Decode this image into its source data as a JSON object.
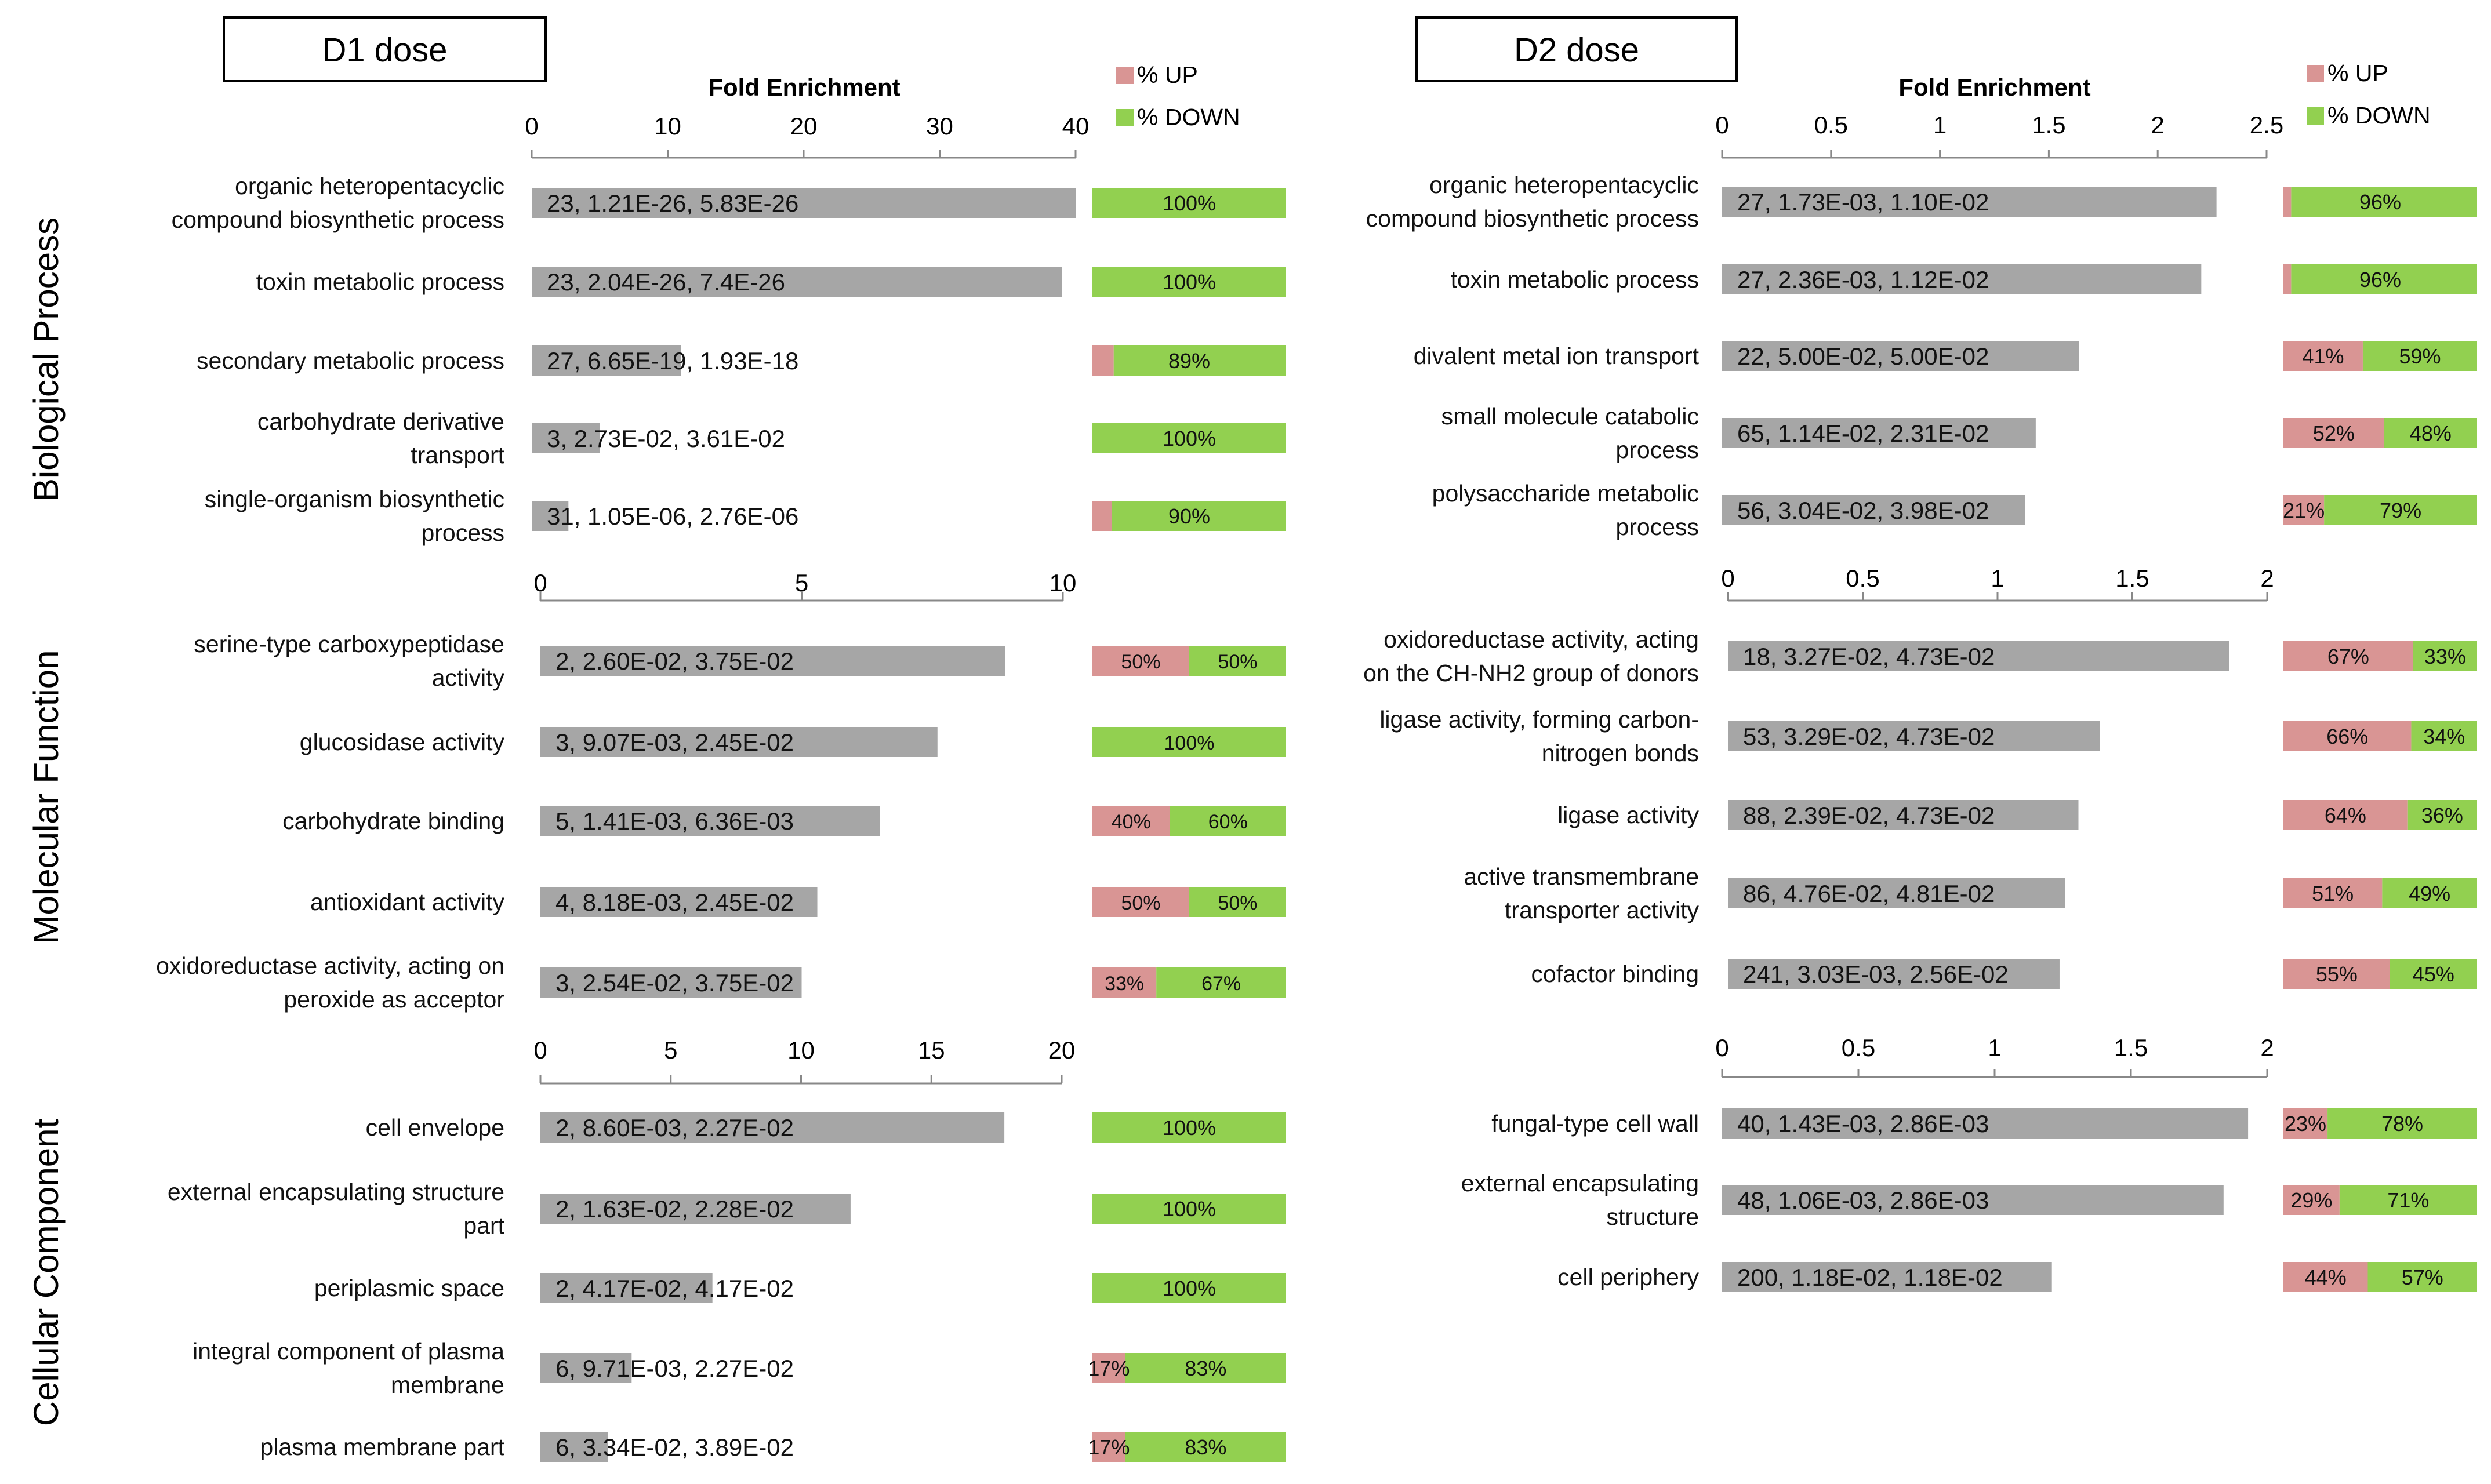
{
  "colors": {
    "bar": "#a6a6a6",
    "up": "#d99594",
    "down": "#92d050",
    "axis": "#888888"
  },
  "legend": {
    "up_label": "% UP",
    "down_label": "% DOWN"
  },
  "chart_data": [
    {
      "type": "bar",
      "orientation": "horizontal",
      "panel_title": "D1 dose",
      "section": "Biological Process",
      "xlabel": "Fold Enrichment",
      "xlim": [
        0,
        40
      ],
      "ticks": [
        "0",
        "10",
        "20",
        "30",
        "40"
      ],
      "legend": [
        "% UP",
        "% DOWN"
      ],
      "categories": [
        "organic heteropentacyclic compound biosynthetic process",
        "toxin metabolic process",
        "secondary metabolic process",
        "carbohydrate derivative transport",
        "single-organism biosynthetic process"
      ],
      "label_lines": [
        [
          "organic heteropentacyclic",
          "compound biosynthetic process"
        ],
        [
          "toxin metabolic process"
        ],
        [
          "secondary metabolic process"
        ],
        [
          "carbohydrate derivative",
          "transport"
        ],
        [
          "single-organism biosynthetic",
          "process"
        ]
      ],
      "values": [
        40,
        39,
        11,
        5,
        2.7
      ],
      "bar_labels": [
        "23, 1.21E-26, 5.83E-26",
        "23, 2.04E-26, 7.4E-26",
        "27, 6.65E-19, 1.93E-18",
        "3, 2.73E-02, 3.61E-02",
        "31, 1.05E-06, 2.76E-06"
      ],
      "pct_up": [
        0,
        0,
        11,
        0,
        10
      ],
      "pct_down": [
        100,
        100,
        89,
        100,
        90
      ],
      "pct_labels": [
        [
          "",
          "100%"
        ],
        [
          "",
          "100%"
        ],
        [
          "",
          "89%"
        ],
        [
          "",
          "100%"
        ],
        [
          "",
          "90%"
        ]
      ]
    },
    {
      "type": "bar",
      "orientation": "horizontal",
      "panel_title": "D1 dose",
      "section": "Molecular Function",
      "xlim": [
        0,
        10
      ],
      "ticks": [
        "0",
        "5",
        "10"
      ],
      "categories": [
        "serine-type carboxypeptidase activity",
        "glucosidase activity",
        "carbohydrate binding",
        "antioxidant activity",
        "oxidoreductase activity, acting on peroxide as acceptor"
      ],
      "label_lines": [
        [
          "serine-type carboxypeptidase",
          "activity"
        ],
        [
          "glucosidase activity"
        ],
        [
          "carbohydrate binding"
        ],
        [
          "antioxidant activity"
        ],
        [
          "oxidoreductase activity, acting on",
          "peroxide as acceptor"
        ]
      ],
      "values": [
        8.9,
        7.6,
        6.5,
        5.3,
        5.0
      ],
      "bar_labels": [
        "2, 2.60E-02, 3.75E-02",
        "3, 9.07E-03, 2.45E-02",
        "5, 1.41E-03, 6.36E-03",
        "4, 8.18E-03, 2.45E-02",
        "3, 2.54E-02, 3.75E-02"
      ],
      "pct_up": [
        50,
        0,
        40,
        50,
        33
      ],
      "pct_down": [
        50,
        100,
        60,
        50,
        67
      ],
      "pct_labels": [
        [
          "50%",
          "50%"
        ],
        [
          "",
          "100%"
        ],
        [
          "40%",
          "60%"
        ],
        [
          "50%",
          "50%"
        ],
        [
          "33%",
          "67%"
        ]
      ]
    },
    {
      "type": "bar",
      "orientation": "horizontal",
      "panel_title": "D1 dose",
      "section": "Cellular Component",
      "xlim": [
        0,
        20
      ],
      "ticks": [
        "0",
        "5",
        "10",
        "15",
        "20"
      ],
      "categories": [
        "cell envelope",
        "external encapsulating structure part",
        "periplasmic space",
        "integral component of plasma membrane",
        "plasma membrane part"
      ],
      "label_lines": [
        [
          "cell envelope"
        ],
        [
          "external encapsulating structure",
          "part"
        ],
        [
          "periplasmic space"
        ],
        [
          "integral component of plasma",
          "membrane"
        ],
        [
          "plasma membrane part"
        ]
      ],
      "values": [
        17.8,
        11.9,
        6.6,
        3.5,
        2.6
      ],
      "bar_labels": [
        "2, 8.60E-03, 2.27E-02",
        "2, 1.63E-02, 2.28E-02",
        "2, 4.17E-02, 4.17E-02",
        "6, 9.71E-03, 2.27E-02",
        "6, 3.34E-02, 3.89E-02"
      ],
      "pct_up": [
        0,
        0,
        0,
        17,
        17
      ],
      "pct_down": [
        100,
        100,
        100,
        83,
        83
      ],
      "pct_labels": [
        [
          "",
          "100%"
        ],
        [
          "",
          "100%"
        ],
        [
          "",
          "100%"
        ],
        [
          "17%",
          "83%"
        ],
        [
          "17%",
          "83%"
        ]
      ]
    },
    {
      "type": "bar",
      "orientation": "horizontal",
      "panel_title": "D2 dose",
      "section": "Biological Process",
      "xlabel": "Fold Enrichment",
      "xlim": [
        0,
        2.5
      ],
      "ticks": [
        "0",
        "0.5",
        "1",
        "1.5",
        "2",
        "2.5"
      ],
      "legend": [
        "% UP",
        "% DOWN"
      ],
      "categories": [
        "organic heteropentacyclic compound biosynthetic process",
        "toxin metabolic process",
        "divalent metal ion transport",
        "small molecule catabolic process",
        "polysaccharide metabolic process"
      ],
      "label_lines": [
        [
          "organic heteropentacyclic",
          "compound biosynthetic process"
        ],
        [
          "toxin metabolic process"
        ],
        [
          "divalent metal ion transport"
        ],
        [
          "small molecule catabolic",
          "process"
        ],
        [
          "polysaccharide metabolic",
          "process"
        ]
      ],
      "values": [
        2.27,
        2.2,
        1.64,
        1.44,
        1.39
      ],
      "bar_labels": [
        "27, 1.73E-03, 1.10E-02",
        "27, 2.36E-03, 1.12E-02",
        "22, 5.00E-02, 5.00E-02",
        "65, 1.14E-02, 2.31E-02",
        "56, 3.04E-02, 3.98E-02"
      ],
      "pct_up": [
        4,
        4,
        41,
        52,
        21
      ],
      "pct_down": [
        96,
        96,
        59,
        48,
        79
      ],
      "pct_labels": [
        [
          "",
          "96%"
        ],
        [
          "",
          "96%"
        ],
        [
          "41%",
          "59%"
        ],
        [
          "52%",
          "48%"
        ],
        [
          "21%",
          "79%"
        ]
      ]
    },
    {
      "type": "bar",
      "orientation": "horizontal",
      "panel_title": "D2 dose",
      "section": "Molecular Function",
      "xlim": [
        0,
        2
      ],
      "ticks": [
        "0",
        "0.5",
        "1",
        "1.5",
        "2"
      ],
      "categories": [
        "oxidoreductase activity, acting on the CH-NH2 group of donors",
        "ligase activity, forming carbon-nitrogen bonds",
        "ligase activity",
        "active transmembrane transporter activity",
        "cofactor binding"
      ],
      "label_lines": [
        [
          "oxidoreductase activity, acting",
          "on the CH-NH2 group of donors"
        ],
        [
          "ligase activity, forming carbon-",
          "nitrogen bonds"
        ],
        [
          "ligase activity"
        ],
        [
          "active transmembrane",
          "transporter activity"
        ],
        [
          "cofactor binding"
        ]
      ],
      "values": [
        1.86,
        1.38,
        1.3,
        1.25,
        1.23
      ],
      "bar_labels": [
        "18, 3.27E-02, 4.73E-02",
        "53, 3.29E-02, 4.73E-02",
        "88, 2.39E-02, 4.73E-02",
        "86, 4.76E-02, 4.81E-02",
        "241, 3.03E-03, 2.56E-02"
      ],
      "pct_up": [
        67,
        66,
        64,
        51,
        55
      ],
      "pct_down": [
        33,
        34,
        36,
        49,
        45
      ],
      "pct_labels": [
        [
          "67%",
          "33%"
        ],
        [
          "66%",
          "34%"
        ],
        [
          "64%",
          "36%"
        ],
        [
          "51%",
          "49%"
        ],
        [
          "55%",
          "45%"
        ]
      ]
    },
    {
      "type": "bar",
      "orientation": "horizontal",
      "panel_title": "D2 dose",
      "section": "Cellular Component",
      "xlim": [
        0,
        2
      ],
      "ticks": [
        "0",
        "0.5",
        "1",
        "1.5",
        "2"
      ],
      "categories": [
        "fungal-type cell wall",
        "external encapsulating structure",
        "cell periphery"
      ],
      "label_lines": [
        [
          "fungal-type cell wall"
        ],
        [
          "external encapsulating",
          "structure"
        ],
        [
          "cell periphery"
        ]
      ],
      "values": [
        1.93,
        1.84,
        1.21
      ],
      "bar_labels": [
        "40, 1.43E-03, 2.86E-03",
        "48, 1.06E-03, 2.86E-03",
        "200, 1.18E-02, 1.18E-02"
      ],
      "pct_up": [
        23,
        29,
        44
      ],
      "pct_down": [
        78,
        71,
        57
      ],
      "pct_labels": [
        [
          "23%",
          "78%"
        ],
        [
          "29%",
          "71%"
        ],
        [
          "44%",
          "57%"
        ]
      ]
    }
  ]
}
